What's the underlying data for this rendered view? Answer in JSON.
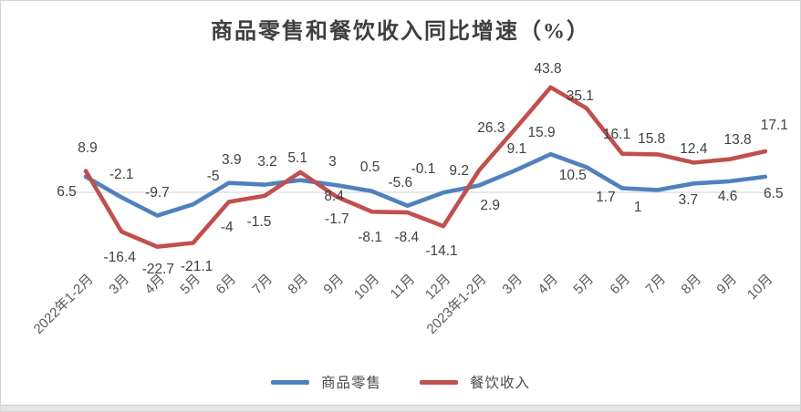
{
  "title": "商品零售和餐饮收入同比增速（%）",
  "legend": {
    "position": "bottom",
    "items": [
      {
        "label": "商品零售",
        "color": "#4F81BD"
      },
      {
        "label": "餐饮收入",
        "color": "#C0504D"
      }
    ]
  },
  "chart_data": {
    "type": "line",
    "title": "商品零售和餐饮收入同比增速（%）",
    "categories": [
      "2022年1-2月",
      "3月",
      "4月",
      "5月",
      "6月",
      "7月",
      "8月",
      "9月",
      "10月",
      "11月",
      "12月",
      "2023年1-2月",
      "3月",
      "4月",
      "5月",
      "6月",
      "7月",
      "8月",
      "9月",
      "10月"
    ],
    "series": [
      {
        "name": "商品零售",
        "color": "#4F81BD",
        "values": [
          6.5,
          -2.1,
          -9.7,
          -5,
          3.9,
          3.2,
          5.1,
          3,
          0.5,
          -5.6,
          -0.1,
          2.9,
          9.1,
          15.9,
          10.5,
          1.7,
          1,
          3.7,
          4.6,
          6.5
        ]
      },
      {
        "name": "餐饮收入",
        "color": "#C0504D",
        "values": [
          8.9,
          -16.4,
          -22.7,
          -21.1,
          -4,
          -1.5,
          8.4,
          -1.7,
          -8.1,
          -8.4,
          -14.1,
          9.2,
          26.3,
          43.8,
          35.1,
          16.1,
          15.8,
          12.4,
          13.8,
          17.1
        ]
      }
    ],
    "xlabel": "",
    "ylabel": "",
    "ylim": [
      -30,
      50
    ],
    "grid": false,
    "data_labels": true,
    "axis_line_color": "#D9D9D9",
    "data_label_color": "#404040",
    "tick_label_color": "#595959",
    "legend_position": "bottom"
  }
}
